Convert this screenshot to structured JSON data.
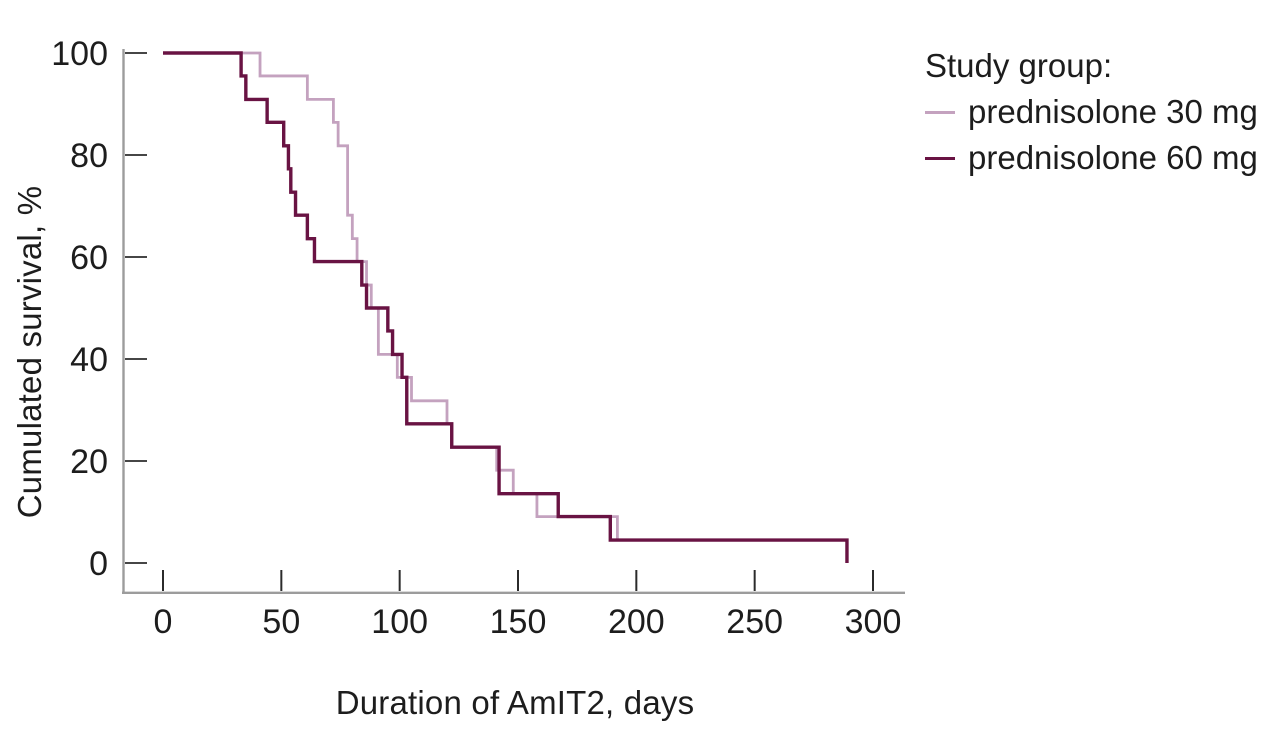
{
  "axes": {
    "y_title": "Cumulated survival, %",
    "x_title": "Duration of AmIT2, days",
    "x_ticks": [
      0,
      50,
      100,
      150,
      200,
      250,
      300
    ],
    "y_ticks": [
      0,
      20,
      40,
      60,
      80,
      100
    ],
    "axis_color": "#9c9c9c",
    "tick_color": "#2b2b2b",
    "label_color": "#1d1d1d"
  },
  "legend": {
    "title": "Study group:",
    "items": [
      {
        "label": "prednisolone 30 mg",
        "color": "#c4a2bf"
      },
      {
        "label": "prednisolone 60 mg",
        "color": "#691343"
      }
    ]
  },
  "chart_data": {
    "type": "line",
    "subtype": "kaplan-meier-step",
    "title": "",
    "xlabel": "Duration of AmIT2, days",
    "ylabel": "Cumulated survival, %",
    "xlim": [
      0,
      300
    ],
    "ylim": [
      0,
      100
    ],
    "grid": false,
    "legend_position": "right-top-outside",
    "legend_title": "Study group:",
    "series": [
      {
        "name": "prednisolone 30 mg",
        "color": "#c4a2bf",
        "start": [
          0,
          100
        ],
        "steps": [
          [
            41,
            95.5
          ],
          [
            61,
            90.9
          ],
          [
            72,
            86.4
          ],
          [
            74,
            81.8
          ],
          [
            78,
            68.2
          ],
          [
            80,
            63.6
          ],
          [
            82,
            59.1
          ],
          [
            86,
            54.5
          ],
          [
            88,
            50
          ],
          [
            91,
            40.9
          ],
          [
            99,
            36.4
          ],
          [
            105,
            31.8
          ],
          [
            120,
            27.3
          ],
          [
            122,
            22.7
          ],
          [
            141,
            18.2
          ],
          [
            148,
            13.6
          ],
          [
            158,
            9.1
          ],
          [
            192,
            4.5
          ],
          [
            289,
            4.5
          ]
        ]
      },
      {
        "name": "prednisolone 60 mg",
        "color": "#691343",
        "start": [
          0,
          100
        ],
        "steps": [
          [
            33,
            95.5
          ],
          [
            35,
            90.9
          ],
          [
            44,
            86.4
          ],
          [
            51,
            81.8
          ],
          [
            53,
            77.3
          ],
          [
            54,
            72.7
          ],
          [
            56,
            68.2
          ],
          [
            61,
            63.6
          ],
          [
            64,
            59.1
          ],
          [
            84,
            54.5
          ],
          [
            86,
            50
          ],
          [
            95,
            45.5
          ],
          [
            97,
            40.9
          ],
          [
            101,
            36.4
          ],
          [
            103,
            27.3
          ],
          [
            122,
            22.7
          ],
          [
            142,
            13.6
          ],
          [
            167,
            9.1
          ],
          [
            189,
            4.5
          ],
          [
            289,
            0
          ]
        ]
      }
    ]
  }
}
